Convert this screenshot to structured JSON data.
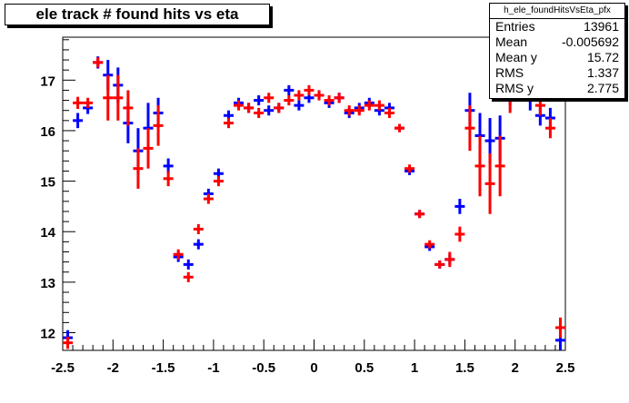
{
  "chart_data": {
    "type": "scatter",
    "title": "ele track # found hits vs eta",
    "xlim": [
      -2.5,
      2.5
    ],
    "ylim": [
      11.65,
      17.85
    ],
    "x_ticks": [
      "-2.5",
      "-2",
      "-1.5",
      "-1",
      "-0.5",
      "0",
      "0.5",
      "1",
      "1.5",
      "2",
      "2.5"
    ],
    "x_tick_values": [
      -2.5,
      -2,
      -1.5,
      -1,
      -0.5,
      0,
      0.5,
      1,
      1.5,
      2,
      2.5
    ],
    "y_ticks": [
      "12",
      "13",
      "14",
      "15",
      "16",
      "17"
    ],
    "y_tick_values": [
      12,
      13,
      14,
      15,
      16,
      17
    ],
    "grid": false,
    "stats": {
      "name": "h_ele_foundHitsVsEta_pfx",
      "rows": [
        {
          "label": "Entries",
          "value": "13961"
        },
        {
          "label": "Mean",
          "value": "-0.005692"
        },
        {
          "label": "Mean y",
          "value": "15.72"
        },
        {
          "label": "RMS",
          "value": "1.337"
        },
        {
          "label": "RMS y",
          "value": "2.775"
        }
      ]
    },
    "series": [
      {
        "color": "#0000ff",
        "x": [
          -2.45,
          -2.35,
          -2.25,
          -2.15,
          -2.05,
          -1.95,
          -1.85,
          -1.75,
          -1.65,
          -1.55,
          -1.45,
          -1.35,
          -1.25,
          -1.15,
          -1.05,
          -0.95,
          -0.85,
          -0.75,
          -0.65,
          -0.55,
          -0.45,
          -0.35,
          -0.25,
          -0.15,
          -0.05,
          0.05,
          0.15,
          0.25,
          0.35,
          0.45,
          0.55,
          0.65,
          0.75,
          0.85,
          0.95,
          1.05,
          1.15,
          1.25,
          1.35,
          1.45,
          1.55,
          1.65,
          1.75,
          1.85,
          1.95,
          2.05,
          2.15,
          2.25,
          2.35,
          2.45
        ],
        "y": [
          11.9,
          16.2,
          16.45,
          17.35,
          17.1,
          16.9,
          16.15,
          15.6,
          16.05,
          16.35,
          15.3,
          13.5,
          13.35,
          13.75,
          14.75,
          15.15,
          16.3,
          16.55,
          16.45,
          16.6,
          16.4,
          16.45,
          16.8,
          16.5,
          16.65,
          16.7,
          16.55,
          16.65,
          16.35,
          16.45,
          16.55,
          16.4,
          16.45,
          16.05,
          15.2,
          14.35,
          13.7,
          13.35,
          13.45,
          14.5,
          16.4,
          15.9,
          15.8,
          15.85,
          16.75,
          16.9,
          16.6,
          16.3,
          16.25,
          11.85
        ],
        "err": [
          0.15,
          0.15,
          0.12,
          0.12,
          0.3,
          0.35,
          0.4,
          0.45,
          0.5,
          0.3,
          0.15,
          0.1,
          0.1,
          0.1,
          0.1,
          0.1,
          0.1,
          0.1,
          0.1,
          0.1,
          0.1,
          0.1,
          0.1,
          0.1,
          0.1,
          0.1,
          0.1,
          0.1,
          0.1,
          0.1,
          0.1,
          0.1,
          0.1,
          0.08,
          0.08,
          0.08,
          0.08,
          0.08,
          0.1,
          0.15,
          0.35,
          0.45,
          0.45,
          0.45,
          0.25,
          0.2,
          0.2,
          0.2,
          0.2,
          0.2
        ]
      },
      {
        "color": "#ff0000",
        "x": [
          -2.45,
          -2.35,
          -2.25,
          -2.15,
          -2.05,
          -1.95,
          -1.85,
          -1.75,
          -1.65,
          -1.55,
          -1.45,
          -1.35,
          -1.25,
          -1.15,
          -1.05,
          -0.95,
          -0.85,
          -0.75,
          -0.65,
          -0.55,
          -0.45,
          -0.35,
          -0.25,
          -0.15,
          -0.05,
          0.05,
          0.15,
          0.25,
          0.35,
          0.45,
          0.55,
          0.65,
          0.75,
          0.85,
          0.95,
          1.05,
          1.15,
          1.25,
          1.35,
          1.45,
          1.55,
          1.65,
          1.75,
          1.85,
          1.95,
          2.05,
          2.15,
          2.25,
          2.35,
          2.45
        ],
        "y": [
          11.8,
          16.55,
          16.55,
          17.35,
          16.65,
          16.65,
          16.45,
          15.25,
          15.65,
          16.1,
          15.05,
          13.55,
          13.1,
          14.05,
          14.65,
          15.0,
          16.15,
          16.5,
          16.45,
          16.35,
          16.65,
          16.45,
          16.6,
          16.7,
          16.8,
          16.7,
          16.6,
          16.65,
          16.4,
          16.4,
          16.5,
          16.5,
          16.35,
          16.05,
          15.25,
          14.35,
          13.75,
          13.35,
          13.45,
          13.95,
          16.05,
          15.3,
          14.95,
          15.3,
          16.65,
          16.85,
          17.35,
          16.5,
          16.05,
          12.1
        ],
        "err": [
          0.12,
          0.12,
          0.1,
          0.1,
          0.45,
          0.45,
          0.35,
          0.4,
          0.4,
          0.4,
          0.15,
          0.1,
          0.1,
          0.1,
          0.1,
          0.1,
          0.1,
          0.1,
          0.1,
          0.1,
          0.1,
          0.1,
          0.1,
          0.1,
          0.1,
          0.1,
          0.1,
          0.1,
          0.1,
          0.1,
          0.1,
          0.1,
          0.1,
          0.08,
          0.08,
          0.08,
          0.08,
          0.08,
          0.15,
          0.15,
          0.45,
          0.6,
          0.6,
          0.6,
          0.3,
          0.25,
          0.25,
          0.2,
          0.2,
          0.2
        ]
      }
    ]
  }
}
